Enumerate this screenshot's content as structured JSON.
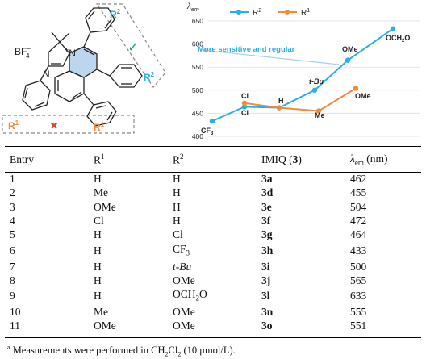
{
  "scheme": {
    "counterion": "BF",
    "counterion_sub": "4",
    "counterion_sup": "−",
    "methyls": "",
    "n_plus": "N",
    "plus": "+",
    "nitrogen": "N",
    "r1_label": "R",
    "r1_sup": "1",
    "r2_label": "R",
    "r2_sup": "2",
    "check_mark": "✓",
    "cross_mark": "✖"
  },
  "chart_data": {
    "type": "line",
    "y_axis_label": "λ",
    "y_axis_label_sub": "em",
    "ylim": [
      400,
      650
    ],
    "yticks": [
      "400",
      "450",
      "500",
      "550",
      "600",
      "650"
    ],
    "legend": [
      {
        "name": "R",
        "sup": "2",
        "color": "#29aee6"
      },
      {
        "name": "R",
        "sup": "1",
        "color": "#f08a3c"
      }
    ],
    "annotation": "More sensitive and regular",
    "series": [
      {
        "name": "R2",
        "color": "#29aee6",
        "points": [
          {
            "label": "CF3",
            "value": 433
          },
          {
            "label": "Cl",
            "value": 464
          },
          {
            "label": "H",
            "value": 462
          },
          {
            "label": "t-Bu",
            "value": 500
          },
          {
            "label": "OMe",
            "value": 565
          },
          {
            "label": "OCH2O",
            "value": 633
          }
        ]
      },
      {
        "name": "R1",
        "color": "#f08a3c",
        "points": [
          {
            "label": "Cl",
            "value": 472
          },
          {
            "label": "H",
            "value": 462
          },
          {
            "label": "Me",
            "value": 455
          },
          {
            "label": "OMe",
            "value": 504
          }
        ]
      }
    ],
    "point_labels": {
      "cf3": "CF",
      "cf3_sub": "3",
      "cl_top": "Cl",
      "cl_bottom": "Cl",
      "h": "H",
      "tbu": "t-Bu",
      "me": "Me",
      "ome_top": "OMe",
      "ome_orange": "OMe",
      "och2o": "OCH",
      "och2o_sub": "2",
      "och2o_end": "O"
    }
  },
  "table": {
    "headers": {
      "entry": "Entry",
      "r1": "R",
      "r1_sup": "1",
      "r2": "R",
      "r2_sup": "2",
      "imiq_pre": "IMIQ (",
      "imiq_num": "3",
      "imiq_post": ")",
      "lambda": "λ",
      "lambda_sub": "em",
      "lambda_unit": " (nm)"
    },
    "rows": [
      {
        "entry": "1",
        "r1": "H",
        "r2": "H",
        "imiq": "3a",
        "lambda": "462"
      },
      {
        "entry": "2",
        "r1": "Me",
        "r2": "H",
        "imiq": "3d",
        "lambda": "455"
      },
      {
        "entry": "3",
        "r1": "OMe",
        "r2": "H",
        "imiq": "3e",
        "lambda": "504"
      },
      {
        "entry": "4",
        "r1": "Cl",
        "r2": "H",
        "imiq": "3f",
        "lambda": "472"
      },
      {
        "entry": "5",
        "r1": "H",
        "r2": "Cl",
        "imiq": "3g",
        "lambda": "464"
      },
      {
        "entry": "6",
        "r1": "H",
        "r2": "CF",
        "r2_sub": "3",
        "imiq": "3h",
        "lambda": "433"
      },
      {
        "entry": "7",
        "r1": "H",
        "r2": "t-Bu",
        "imiq": "3i",
        "lambda": "500"
      },
      {
        "entry": "8",
        "r1": "H",
        "r2": "OMe",
        "imiq": "3j",
        "lambda": "565"
      },
      {
        "entry": "9",
        "r1": "H",
        "r2": "OCH",
        "r2_sub": "2",
        "r2_end": "O",
        "imiq": "3l",
        "lambda": "633"
      },
      {
        "entry": "10",
        "r1": "Me",
        "r2": "OMe",
        "imiq": "3n",
        "lambda": "555"
      },
      {
        "entry": "11",
        "r1": "OMe",
        "r2": "OMe",
        "imiq": "3o",
        "lambda": "551"
      }
    ]
  },
  "footnote": {
    "marker": "a",
    "text": " Measurements were performed in CH",
    "sub1": "2",
    "mid": "Cl",
    "sub2": "2",
    "end": " (10 μmol/L)."
  }
}
